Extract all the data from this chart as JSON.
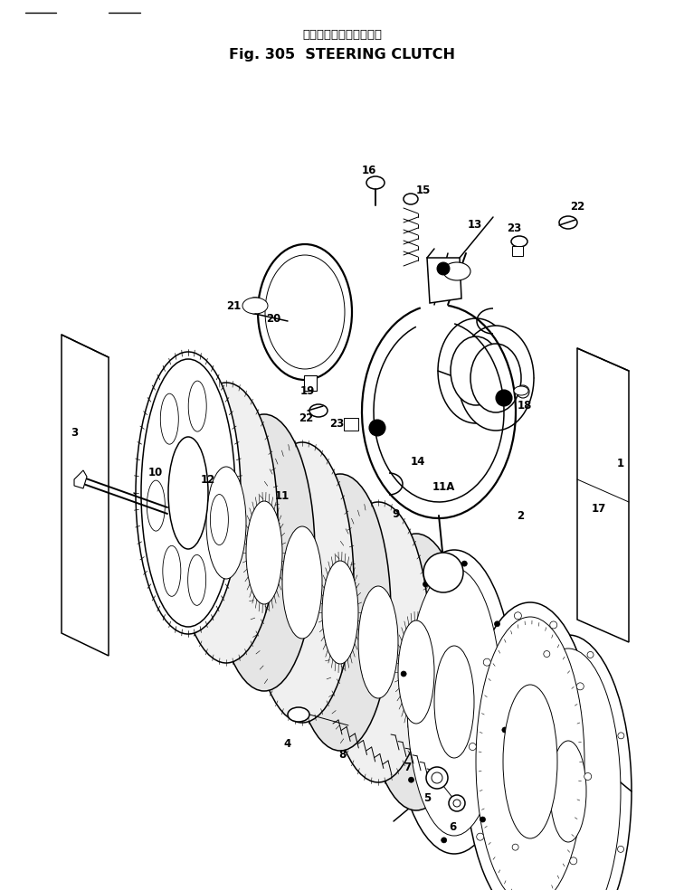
{
  "title_japanese": "ステアリング　クラッチ",
  "title_english": "Fig. 305  STEERING CLUTCH",
  "background_color": "#ffffff",
  "line_color": "#000000",
  "fig_width": 7.56,
  "fig_height": 9.84,
  "dpi": 100,
  "header_lines": [
    [
      0.04,
      0.972,
      0.09,
      0.972
    ],
    [
      0.17,
      0.972,
      0.21,
      0.972
    ]
  ]
}
